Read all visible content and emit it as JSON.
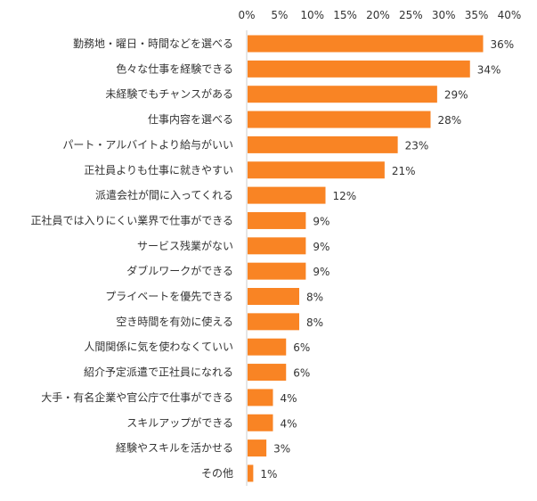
{
  "chart_data": {
    "type": "bar",
    "orientation": "horizontal",
    "title": "",
    "xlabel": "",
    "ylabel": "",
    "xlim": [
      0,
      40
    ],
    "ticks": [
      "0%",
      "5%",
      "10%",
      "15%",
      "20%",
      "25%",
      "30%",
      "35%",
      "40%"
    ],
    "tick_values": [
      0,
      5,
      10,
      15,
      20,
      25,
      30,
      35,
      40
    ],
    "grid": false,
    "color": "#F98424",
    "categories": [
      "勤務地・曜日・時間などを選べる",
      "色々な仕事を経験できる",
      "未経験でもチャンスがある",
      "仕事内容を選べる",
      "パート・アルバイトより給与がいい",
      "正社員よりも仕事に就きやすい",
      "派遣会社が間に入ってくれる",
      "正社員では入りにくい業界で仕事ができる",
      "サービス残業がない",
      "ダブルワークができる",
      "プライベートを優先できる",
      "空き時間を有効に使える",
      "人間関係に気を使わなくていい",
      "紹介予定派遣で正社員になれる",
      "大手・有名企業や官公庁で仕事ができる",
      "スキルアップができる",
      "経験やスキルを活かせる",
      "その他"
    ],
    "values": [
      36,
      34,
      29,
      28,
      23,
      21,
      12,
      9,
      9,
      9,
      8,
      8,
      6,
      6,
      4,
      4,
      3,
      1
    ],
    "labels": [
      "36%",
      "34%",
      "29%",
      "28%",
      "23%",
      "21%",
      "12%",
      "9%",
      "9%",
      "9%",
      "8%",
      "8%",
      "6%",
      "6%",
      "4%",
      "4%",
      "3%",
      "1%"
    ]
  }
}
